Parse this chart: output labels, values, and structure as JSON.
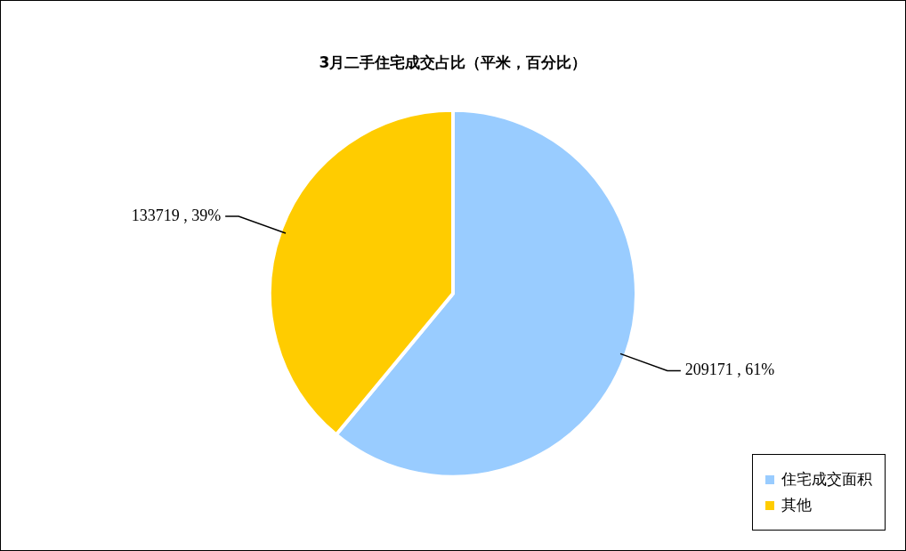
{
  "chart_data": {
    "type": "pie",
    "title": "3月二手住宅成交占比（平米，百分比）",
    "categories": [
      "住宅成交面积",
      "其他"
    ],
    "values": [
      209171,
      133719
    ],
    "colors": [
      "#99ccff",
      "#ffcc00"
    ],
    "value_labels": [
      "209171 , 61%",
      "133719 , 39%"
    ],
    "legend": "bottom right"
  }
}
